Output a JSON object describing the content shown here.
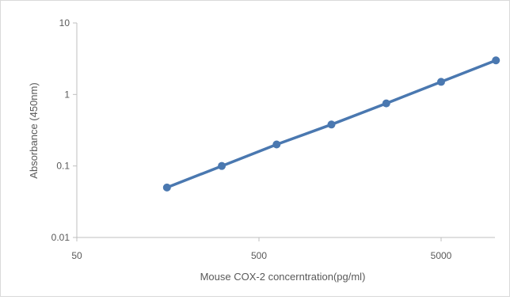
{
  "chart_data": {
    "type": "line",
    "title": "",
    "xlabel": "Mouse COX-2 concerntration(pg/ml)",
    "ylabel": "Absorbance (450nm)",
    "x_scale": "log",
    "y_scale": "log",
    "xlim": [
      50,
      10000
    ],
    "ylim": [
      0.01,
      10
    ],
    "x_ticks": [
      "50",
      "500",
      "5000"
    ],
    "y_ticks": [
      "0.01",
      "0.1",
      "1",
      "10"
    ],
    "x_tick_values": [
      50,
      500,
      5000
    ],
    "y_tick_values": [
      0.01,
      0.1,
      1,
      10
    ],
    "grid": false,
    "legend": "none",
    "series": [
      {
        "color": "#4a78b0",
        "x": [
          156.25,
          312.5,
          625,
          1250,
          2500,
          5000,
          10000
        ],
        "y": [
          0.05,
          0.1,
          0.2,
          0.38,
          0.75,
          1.5,
          3.0
        ]
      }
    ]
  }
}
